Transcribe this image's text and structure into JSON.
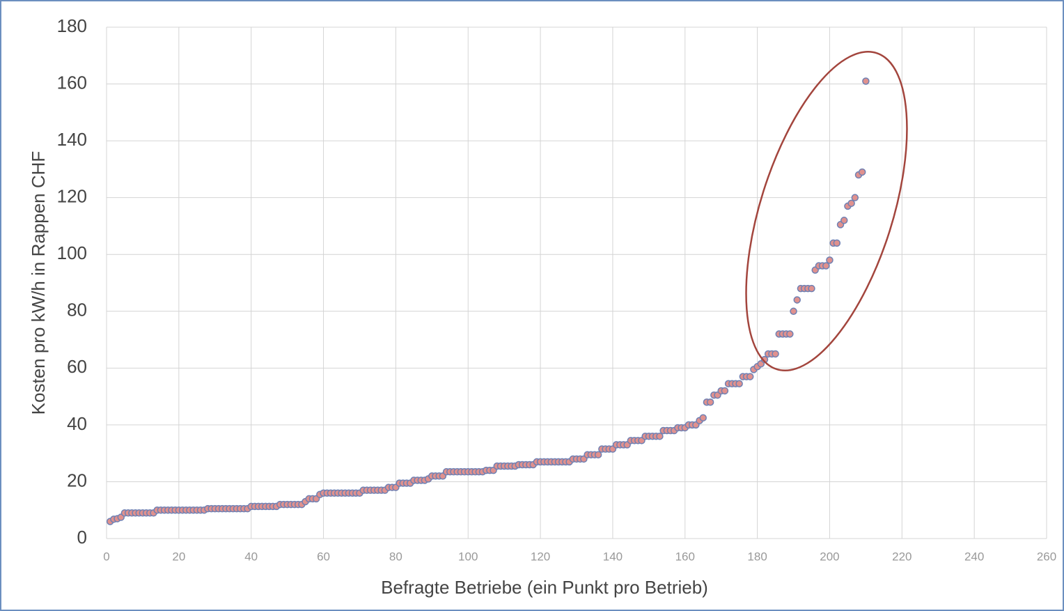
{
  "chart_data": {
    "type": "scatter",
    "xlabel": "Befragte Betriebe (ein Punkt pro Betrieb)",
    "ylabel": "Kosten pro kW/h in Rappen CHF",
    "xlim": [
      0,
      260
    ],
    "xticks": [
      0,
      20,
      40,
      60,
      80,
      100,
      120,
      140,
      160,
      180,
      200,
      220,
      240,
      260
    ],
    "ylim": [
      0,
      180
    ],
    "yticks": [
      0,
      20,
      40,
      60,
      80,
      100,
      120,
      140,
      160,
      180
    ],
    "grid": true,
    "color": "#e0918e",
    "edgecolor": "#6f80b3",
    "x": [
      1,
      2,
      3,
      4,
      5,
      6,
      7,
      8,
      9,
      10,
      11,
      12,
      13,
      14,
      15,
      16,
      17,
      18,
      19,
      20,
      21,
      22,
      23,
      24,
      25,
      26,
      27,
      28,
      29,
      30,
      31,
      32,
      33,
      34,
      35,
      36,
      37,
      38,
      39,
      40,
      41,
      42,
      43,
      44,
      45,
      46,
      47,
      48,
      49,
      50,
      51,
      52,
      53,
      54,
      55,
      56,
      57,
      58,
      59,
      60,
      61,
      62,
      63,
      64,
      65,
      66,
      67,
      68,
      69,
      70,
      71,
      72,
      73,
      74,
      75,
      76,
      77,
      78,
      79,
      80,
      81,
      82,
      83,
      84,
      85,
      86,
      87,
      88,
      89,
      90,
      91,
      92,
      93,
      94,
      95,
      96,
      97,
      98,
      99,
      100,
      101,
      102,
      103,
      104,
      105,
      106,
      107,
      108,
      109,
      110,
      111,
      112,
      113,
      114,
      115,
      116,
      117,
      118,
      119,
      120,
      121,
      122,
      123,
      124,
      125,
      126,
      127,
      128,
      129,
      130,
      131,
      132,
      133,
      134,
      135,
      136,
      137,
      138,
      139,
      140,
      141,
      142,
      143,
      144,
      145,
      146,
      147,
      148,
      149,
      150,
      151,
      152,
      153,
      154,
      155,
      156,
      157,
      158,
      159,
      160,
      161,
      162,
      163,
      164,
      165,
      166,
      167,
      168,
      169,
      170,
      171,
      172,
      173,
      174,
      175,
      176,
      177,
      178,
      179,
      180,
      181,
      182,
      183,
      184,
      185,
      186,
      187,
      188,
      189,
      190,
      191,
      192,
      193,
      194,
      195,
      196,
      197,
      198,
      199,
      200,
      201,
      202,
      203,
      204,
      205,
      206,
      207,
      208,
      209,
      210
    ],
    "values": [
      6,
      6.8,
      7,
      7.5,
      9,
      9,
      9,
      9,
      9,
      9,
      9,
      9,
      9,
      10,
      10,
      10,
      10,
      10,
      10,
      10,
      10,
      10,
      10,
      10,
      10,
      10,
      10,
      10.5,
      10.5,
      10.5,
      10.5,
      10.5,
      10.5,
      10.5,
      10.5,
      10.5,
      10.5,
      10.5,
      10.5,
      11.3,
      11.3,
      11.3,
      11.3,
      11.3,
      11.3,
      11.3,
      11.3,
      12,
      12,
      12,
      12,
      12,
      12,
      12,
      13,
      14,
      14,
      14,
      15.5,
      16,
      16,
      16,
      16,
      16,
      16,
      16,
      16,
      16,
      16,
      16,
      17,
      17,
      17,
      17,
      17,
      17,
      17,
      18,
      18,
      18,
      19.5,
      19.5,
      19.5,
      19.5,
      20.5,
      20.5,
      20.5,
      20.5,
      21,
      22,
      22,
      22,
      22,
      23.5,
      23.5,
      23.5,
      23.5,
      23.5,
      23.5,
      23.5,
      23.5,
      23.5,
      23.5,
      23.5,
      24,
      24,
      24,
      25.5,
      25.5,
      25.5,
      25.5,
      25.5,
      25.5,
      26,
      26,
      26,
      26,
      26,
      27,
      27,
      27,
      27,
      27,
      27,
      27,
      27,
      27,
      27,
      28,
      28,
      28,
      28,
      29.5,
      29.5,
      29.5,
      29.5,
      31.5,
      31.5,
      31.5,
      31.5,
      33,
      33,
      33,
      33,
      34.5,
      34.5,
      34.5,
      34.5,
      36,
      36,
      36,
      36,
      36,
      38,
      38,
      38,
      38,
      39,
      39,
      39,
      40,
      40,
      40,
      41.5,
      42.5,
      48,
      48,
      50.5,
      50.5,
      52,
      52,
      54.5,
      54.5,
      54.5,
      54.5,
      57,
      57,
      57,
      59.5,
      60.5,
      61.5,
      63,
      65,
      65,
      65,
      72,
      72,
      72,
      72,
      80,
      84,
      88,
      88,
      88,
      88,
      94.5,
      96,
      96,
      96,
      98,
      104,
      104,
      110.5,
      112,
      117,
      118,
      120,
      128,
      129,
      161
    ]
  }
}
